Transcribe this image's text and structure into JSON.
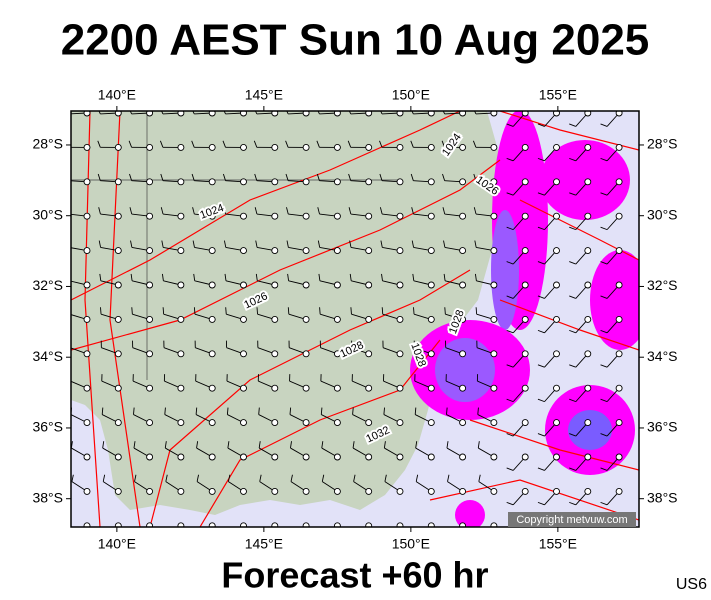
{
  "title": "2200 AEST Sun 10 Aug 2025",
  "lon_lim": [
    138.44,
    157.76
  ],
  "lat_lim": [
    -27.04,
    -38.8
  ],
  "lon_ticks": [
    {
      "value": 140,
      "label": "140°E"
    },
    {
      "value": 145,
      "label": "145°E"
    },
    {
      "value": 150,
      "label": "150°E"
    },
    {
      "value": 155,
      "label": "155°E"
    }
  ],
  "lat_ticks": [
    {
      "value": -28,
      "label": "28°S"
    },
    {
      "value": -30,
      "label": "30°S"
    },
    {
      "value": -32,
      "label": "32°S"
    },
    {
      "value": -34,
      "label": "34°S"
    },
    {
      "value": -36,
      "label": "36°S"
    },
    {
      "value": -38,
      "label": "38°S"
    }
  ],
  "isobar_labels": [
    1024,
    1024,
    1026,
    1026,
    1028,
    1028,
    1028,
    1032
  ],
  "copyright": "Copyright metvuw.com",
  "footer": "Forecast +60 hr",
  "code": "US6"
}
